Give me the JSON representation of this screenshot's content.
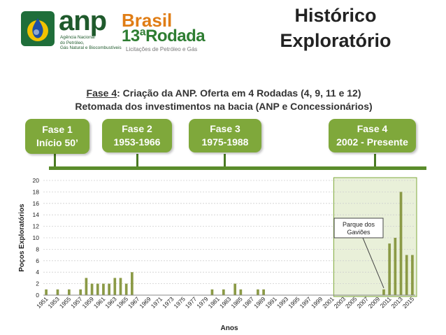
{
  "header": {
    "anp_logo_text": "anp",
    "anp_tagline": "Agência Nacional\ndo Petróleo,\nGás Natural e Biocombustíveis",
    "brasil_logo_line1": "Brasil",
    "brasil_logo_line2": "13ªRodada",
    "brasil_logo_sub": "Licitações de Petróleo e Gás",
    "title_line1": "Histórico",
    "title_line2": "Exploratório"
  },
  "subtitle": {
    "phase_label": "Fase 4",
    "line1_rest": ": Criação da ANP. Oferta em 4 Rodadas (4, 9, 11 e 12)",
    "line2": "Retomada dos investimentos na bacia (ANP e Concessionários)"
  },
  "phases": [
    {
      "name": "Fase 1",
      "period": "Início 50’"
    },
    {
      "name": "Fase 2",
      "period": "1953-1966"
    },
    {
      "name": "Fase 3",
      "period": "1975-1988"
    },
    {
      "name": "Fase 4",
      "period": "2002 - Presente"
    }
  ],
  "colors": {
    "bar": "#8b9a46",
    "phase_box": "#7fa83b",
    "timeline": "#5a8c2b",
    "highlight_bg": "#e9f0d9",
    "highlight_border": "#7fa83b"
  },
  "chart_data": {
    "type": "bar",
    "ylabel": "Poços Exploratórios",
    "xlabel": "Anos",
    "ylim": [
      0,
      20
    ],
    "yticks": [
      0,
      2,
      4,
      6,
      8,
      10,
      12,
      14,
      16,
      18,
      20
    ],
    "grid": true,
    "x_start": 1951,
    "x_end": 2015,
    "tick_labels": [
      "1951",
      "1953",
      "1955",
      "1957",
      "1959",
      "1961",
      "1963",
      "1965",
      "1967",
      "1969",
      "1971",
      "1973",
      "1975",
      "1977",
      "1979",
      "1981",
      "1983",
      "1985",
      "1987",
      "1989",
      "1991",
      "1993",
      "1995",
      "1997",
      "1999",
      "2001",
      "2003",
      "2005",
      "2007",
      "2009",
      "2011",
      "2013",
      "2015"
    ],
    "data": [
      {
        "year": 1951,
        "value": 1
      },
      {
        "year": 1953,
        "value": 1
      },
      {
        "year": 1955,
        "value": 1
      },
      {
        "year": 1957,
        "value": 1
      },
      {
        "year": 1958,
        "value": 3
      },
      {
        "year": 1959,
        "value": 2
      },
      {
        "year": 1960,
        "value": 2
      },
      {
        "year": 1961,
        "value": 2
      },
      {
        "year": 1962,
        "value": 2
      },
      {
        "year": 1963,
        "value": 3
      },
      {
        "year": 1964,
        "value": 3
      },
      {
        "year": 1965,
        "value": 2
      },
      {
        "year": 1966,
        "value": 4
      },
      {
        "year": 1980,
        "value": 1
      },
      {
        "year": 1982,
        "value": 1
      },
      {
        "year": 1984,
        "value": 2
      },
      {
        "year": 1985,
        "value": 1
      },
      {
        "year": 1988,
        "value": 1
      },
      {
        "year": 1989,
        "value": 1
      },
      {
        "year": 2010,
        "value": 1
      },
      {
        "year": 2011,
        "value": 9
      },
      {
        "year": 2012,
        "value": 10
      },
      {
        "year": 2013,
        "value": 18
      },
      {
        "year": 2014,
        "value": 7
      },
      {
        "year": 2015,
        "value": 7
      }
    ],
    "highlight_range": [
      2002,
      2015
    ],
    "annotation": {
      "text_line1": "Parque dos",
      "text_line2": "Gaviões",
      "year": 2010
    }
  }
}
